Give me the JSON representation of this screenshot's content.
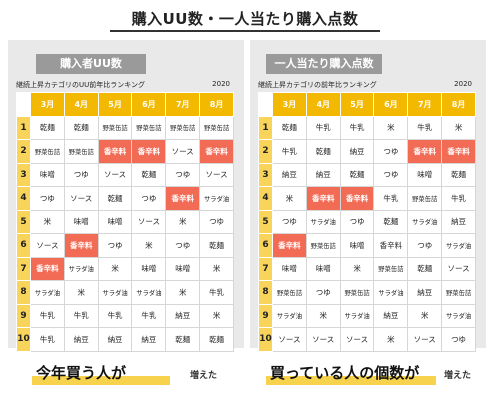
{
  "title": "購入UU数・一人当たり購入点数",
  "months": [
    "3月",
    "4月",
    "5月",
    "6月",
    "7月",
    "8月"
  ],
  "ranks": [
    "1",
    "2",
    "3",
    "4",
    "5",
    "6",
    "7",
    "8",
    "9",
    "10"
  ],
  "highlight_color": "#f26b55",
  "panels": [
    {
      "badge": "購入者UU数",
      "subtitle": "継続上昇カテゴリのUU前年比ランキング",
      "year": "2020",
      "rows": [
        [
          "乾麺",
          "乾麺",
          "野菜缶詰",
          "野菜缶詰",
          "野菜缶詰",
          "野菜缶詰"
        ],
        [
          "野菜缶詰",
          "野菜缶詰",
          "香辛料",
          "香辛料",
          "ソース",
          "香辛料"
        ],
        [
          "味噌",
          "つゆ",
          "ソース",
          "乾麺",
          "つゆ",
          "ソース"
        ],
        [
          "つゆ",
          "ソース",
          "乾麺",
          "つゆ",
          "香辛料",
          "サラダ油"
        ],
        [
          "米",
          "味噌",
          "味噌",
          "ソース",
          "米",
          "つゆ"
        ],
        [
          "ソース",
          "香辛料",
          "つゆ",
          "米",
          "つゆ",
          "乾麺"
        ],
        [
          "香辛料",
          "サラダ油",
          "米",
          "味噌",
          "味噌",
          "米"
        ],
        [
          "サラダ油",
          "米",
          "サラダ油",
          "サラダ油",
          "米",
          "牛乳"
        ],
        [
          "牛乳",
          "牛乳",
          "牛乳",
          "牛乳",
          "納豆",
          "米"
        ],
        [
          "牛乳",
          "納豆",
          "納豆",
          "納豆",
          "乾麺",
          "乾麺"
        ]
      ],
      "highlights": [
        [
          1,
          2
        ],
        [
          1,
          3
        ],
        [
          1,
          5
        ],
        [
          3,
          4
        ],
        [
          5,
          1
        ],
        [
          6,
          0
        ]
      ],
      "caption_main": "今年買う人が",
      "caption_sub": "増えた"
    },
    {
      "badge": "一人当たり購入点数",
      "subtitle": "継続上昇カテゴリの前年比ランキング",
      "year": "2020",
      "rows": [
        [
          "乾麺",
          "牛乳",
          "牛乳",
          "米",
          "牛乳",
          "米"
        ],
        [
          "牛乳",
          "乾麺",
          "納豆",
          "つゆ",
          "香辛料",
          "香辛料"
        ],
        [
          "納豆",
          "納豆",
          "乾麺",
          "つゆ",
          "味噌",
          "乾麺"
        ],
        [
          "米",
          "香辛料",
          "香辛料",
          "牛乳",
          "野菜缶詰",
          "牛乳"
        ],
        [
          "つゆ",
          "サラダ油",
          "つゆ",
          "乾麺",
          "サラダ油",
          "納豆"
        ],
        [
          "香辛料",
          "野菜缶詰",
          "味噌",
          "香辛料",
          "つゆ",
          "サラダ油"
        ],
        [
          "味噌",
          "味噌",
          "米",
          "野菜缶詰",
          "乾麺",
          "ソース"
        ],
        [
          "野菜缶詰",
          "つゆ",
          "野菜缶詰",
          "サラダ油",
          "納豆",
          "野菜缶詰"
        ],
        [
          "サラダ油",
          "米",
          "サラダ油",
          "納豆",
          "米",
          "サラダ油"
        ],
        [
          "ソース",
          "ソース",
          "ソース",
          "米",
          "ソース",
          "つゆ"
        ]
      ],
      "highlights": [
        [
          1,
          4
        ],
        [
          1,
          5
        ],
        [
          3,
          1
        ],
        [
          3,
          2
        ],
        [
          5,
          0
        ]
      ],
      "caption_main": "買っている人の個数が",
      "caption_sub": "増えた"
    }
  ]
}
